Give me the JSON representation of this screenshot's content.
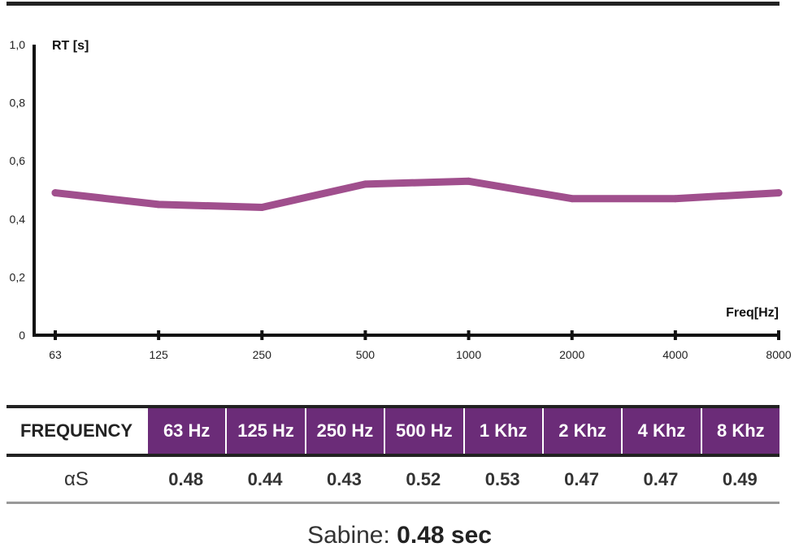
{
  "chart_data": {
    "type": "line",
    "ylabel": "RT [s]",
    "xlabel": "Freq[Hz]",
    "y_ticks": [
      "0",
      "0,2",
      "0,4",
      "0,6",
      "0,8",
      "1,0"
    ],
    "ylim": [
      0,
      1.0
    ],
    "categories": [
      "63",
      "125",
      "250",
      "500",
      "1000",
      "2000",
      "4000",
      "8000"
    ],
    "values": [
      0.49,
      0.45,
      0.44,
      0.52,
      0.53,
      0.47,
      0.47,
      0.49
    ],
    "line_color": "#a04f8d",
    "grid": false
  },
  "table": {
    "header_label": "FREQUENCY",
    "headers": [
      "63 Hz",
      "125 Hz",
      "250 Hz",
      "500 Hz",
      "1 Khz",
      "2 Khz",
      "4 Khz",
      "8 Khz"
    ],
    "row_label": "αS",
    "values": [
      "0.48",
      "0.44",
      "0.43",
      "0.52",
      "0.53",
      "0.47",
      "0.47",
      "0.49"
    ],
    "header_color": "#6b2c78"
  },
  "sabine": {
    "label": "Sabine:",
    "value": "0.48 sec"
  }
}
